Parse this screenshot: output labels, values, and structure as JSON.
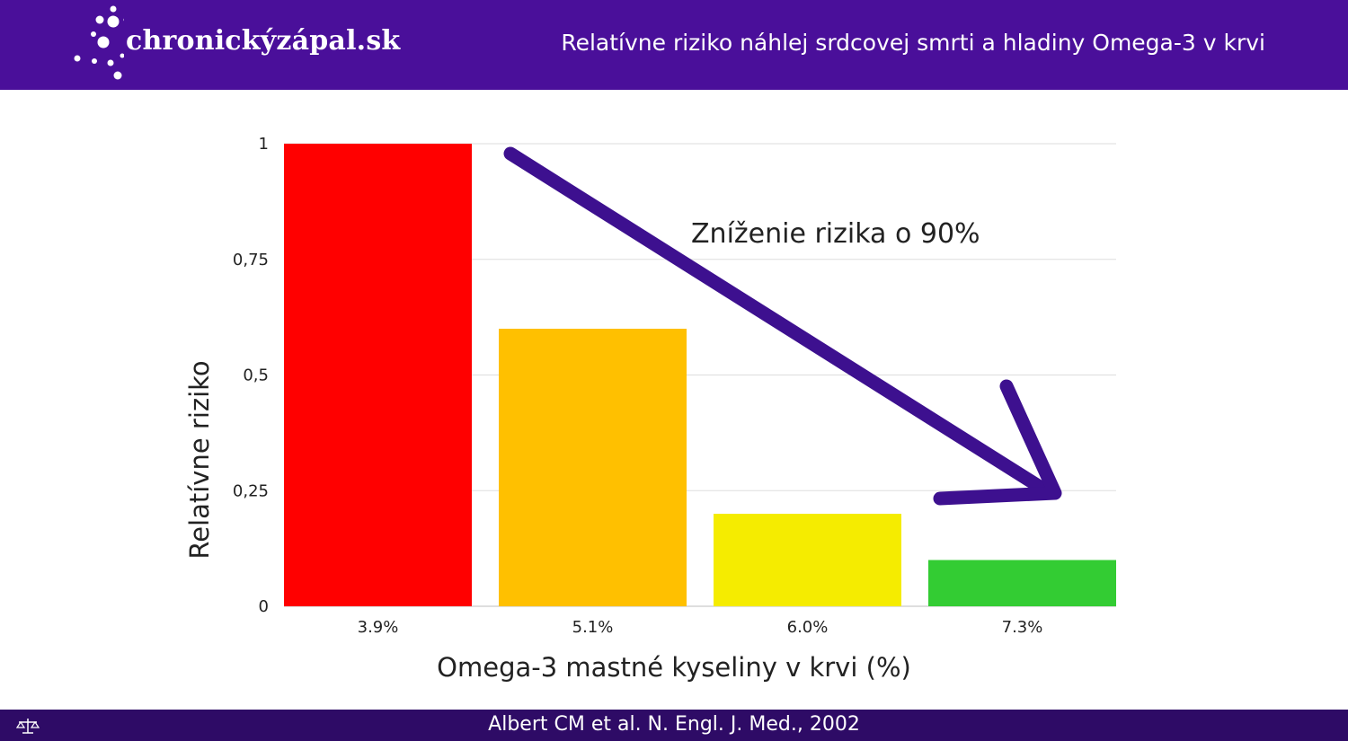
{
  "header": {
    "logo_text": "chronickýzápal.sk",
    "logo_icon": "molecule-dots-icon",
    "title": "Relatívne riziko náhlej srdcovej smrti a hladiny Omega-3 v krvi",
    "background": "#4a0f9a"
  },
  "chart_data": {
    "type": "bar",
    "categories": [
      "3.9%",
      "5.1%",
      "6.0%",
      "7.3%"
    ],
    "values": [
      1.0,
      0.6,
      0.2,
      0.1
    ],
    "colors": [
      "#ff0000",
      "#ffc000",
      "#f5ec00",
      "#33cc33"
    ],
    "xlabel": "Omega-3 mastné kyseliny v krvi (%)",
    "ylabel": "Relatívne riziko",
    "ylim": [
      0,
      1
    ],
    "yticks": [
      "0",
      "0,25",
      "0,5",
      "0,75",
      "1"
    ],
    "ytick_values": [
      0,
      0.25,
      0.5,
      0.75,
      1
    ],
    "grid": true,
    "annotation": {
      "text": "Zníženie rizika o 90%",
      "arrow_color": "#3d108f",
      "arrow_direction": "downward-right"
    }
  },
  "footer": {
    "citation": "Albert CM et al. N. Engl. J. Med., 2002",
    "icon": "scale-icon",
    "background": "#2e0b66"
  }
}
